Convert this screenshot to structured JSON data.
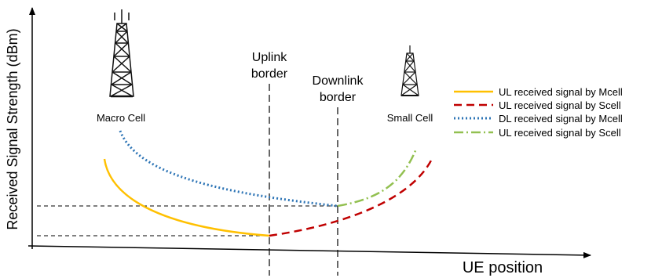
{
  "y_axis_label": "Received Signal Strength (dBm)",
  "x_axis_label": "UE position",
  "macro_cell_label": "Macro Cell",
  "small_cell_label": "Small Cell",
  "uplink_border_line1": "Uplink",
  "uplink_border_line2": "border",
  "downlink_border_line1": "Downlink",
  "downlink_border_line2": "border",
  "legend": [
    {
      "label": "UL received signal by Mcell",
      "color": "#FFC000",
      "style": "solid"
    },
    {
      "label": "UL received signal by Scell",
      "color": "#C00000",
      "style": "dashed"
    },
    {
      "label": "DL received signal by Mcell",
      "color": "#2E75B6",
      "style": "dotted"
    },
    {
      "label": "UL received signal by Scell",
      "color": "#92C050",
      "style": "dash-dot"
    }
  ],
  "icons": [
    "macro-cell-tower-icon",
    "small-cell-tower-icon"
  ]
}
